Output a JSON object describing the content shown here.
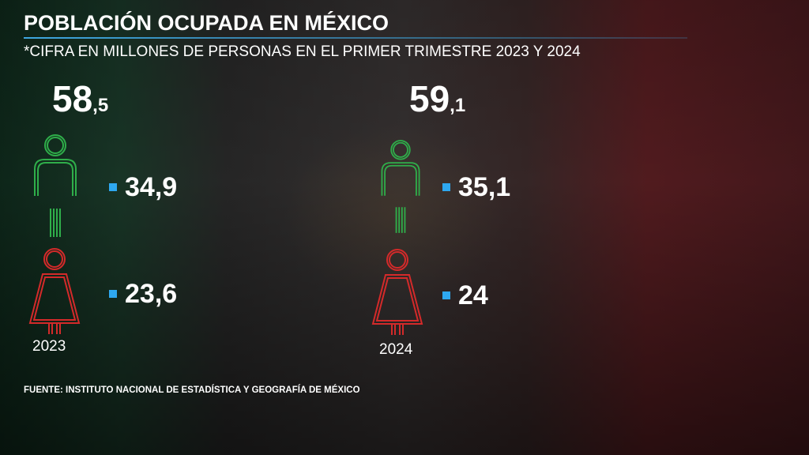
{
  "header": {
    "title": "POBLACIÓN OCUPADA EN MÉXICO",
    "subtitle": "*CIFRA EN MILLONES DE PERSONAS EN EL PRIMER TRIMESTRE 2023 Y 2024"
  },
  "years": [
    {
      "year": "2023",
      "total": {
        "main": "58",
        "decimal": ",5"
      },
      "men": "34,9",
      "women": "23,6"
    },
    {
      "year": "2024",
      "total": {
        "main": "59",
        "decimal": ",1"
      },
      "men": "35,1",
      "women": "24"
    }
  ],
  "footer": {
    "source": "FUENTE: INSTITUTO NACIONAL DE ESTADÍSTICA Y GEOGRAFÍA DE MÉXICO"
  }
}
